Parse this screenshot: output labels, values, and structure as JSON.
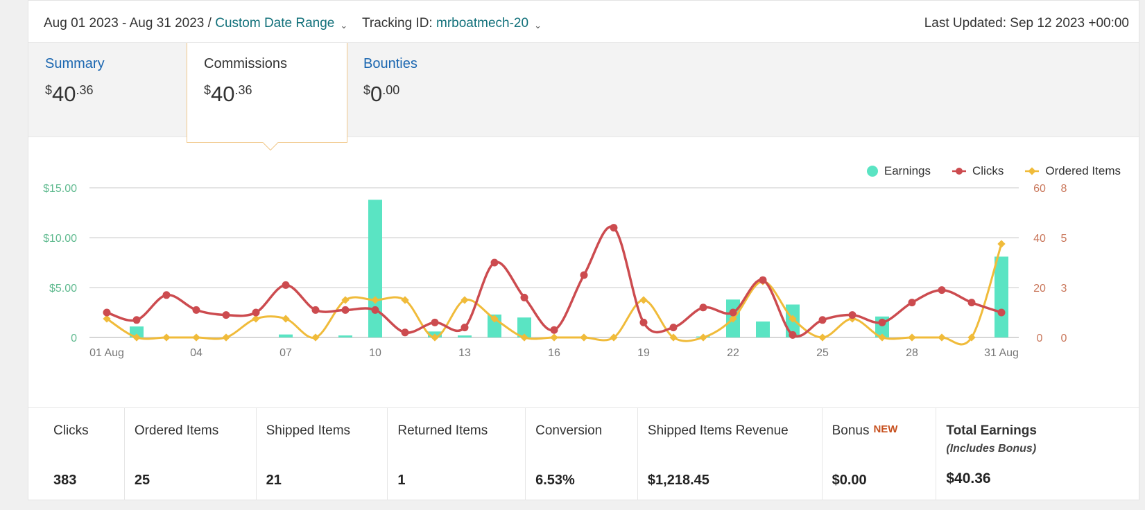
{
  "header": {
    "date_range": "Aug 01 2023 - Aug 31 2023 /",
    "date_range_link": "Custom Date Range",
    "tracking_label": "Tracking ID:",
    "tracking_id": "mrboatmech-20",
    "last_updated": "Last Updated: Sep 12 2023 +00:00"
  },
  "tabs": [
    {
      "label": "Summary",
      "dollar": "$",
      "whole": "40",
      "cents": ".36"
    },
    {
      "label": "Commissions",
      "dollar": "$",
      "whole": "40",
      "cents": ".36"
    },
    {
      "label": "Bounties",
      "dollar": "$",
      "whole": "0",
      "cents": ".00"
    }
  ],
  "legend": {
    "earnings": "Earnings",
    "clicks": "Clicks",
    "ordered": "Ordered Items"
  },
  "colors": {
    "earnings": "#5ae4c3",
    "clicks": "#cc4b4f",
    "ordered": "#f0bb3a",
    "left_axis": "#5fba8f",
    "right_axis": "#c9765a",
    "link": "#11707a"
  },
  "chart_data": {
    "type": "bar",
    "x": [
      "01 Aug",
      "02",
      "03",
      "04",
      "05",
      "06",
      "07",
      "08",
      "09",
      "10",
      "11",
      "12",
      "13",
      "14",
      "15",
      "16",
      "17",
      "18",
      "19",
      "20",
      "21",
      "22",
      "23",
      "24",
      "25",
      "26",
      "27",
      "28",
      "29",
      "30",
      "31 Aug"
    ],
    "x_tick_labels": [
      "01 Aug",
      "04",
      "07",
      "10",
      "13",
      "16",
      "19",
      "22",
      "25",
      "28",
      "31 Aug"
    ],
    "y_left_ticks": [
      "0",
      "$5.00",
      "$10.00",
      "$15.00"
    ],
    "y_left_lim": [
      0,
      15
    ],
    "y_right_ticks_clicks": [
      "0",
      "20",
      "40",
      "60"
    ],
    "y_right_lim_clicks": [
      0,
      60
    ],
    "y_right_ticks_items": [
      "0",
      "3",
      "5",
      "8"
    ],
    "y_right_lim_items": [
      0,
      8
    ],
    "grid": true,
    "legend_position": "top-right",
    "series": [
      {
        "name": "Earnings",
        "type": "bar",
        "axis": "left",
        "values": [
          0,
          1.1,
          0,
          0,
          0,
          0,
          0.3,
          0,
          0.2,
          13.8,
          0,
          0.6,
          0.2,
          2.3,
          2.0,
          0,
          0,
          0,
          0,
          0,
          0.1,
          3.8,
          1.6,
          3.3,
          0,
          0,
          2.1,
          0,
          0,
          0,
          8.1
        ]
      },
      {
        "name": "Clicks",
        "type": "line",
        "axis": "right-clicks",
        "values": [
          10,
          7,
          17,
          11,
          9,
          10,
          21,
          11,
          11,
          11,
          2,
          6,
          4,
          30,
          16,
          3,
          25,
          44,
          6,
          4,
          12,
          10,
          23,
          1,
          7,
          9,
          6,
          14,
          19,
          14,
          10
        ]
      },
      {
        "name": "Ordered Items",
        "type": "line",
        "axis": "right-items",
        "values": [
          1,
          0,
          0,
          0,
          0,
          1,
          1,
          0,
          2,
          2,
          2,
          0,
          2,
          1,
          0,
          0,
          0,
          0,
          2,
          0,
          0,
          1,
          3,
          1,
          0,
          1,
          0,
          0,
          0,
          0,
          5
        ]
      }
    ]
  },
  "stats": [
    {
      "label": "Clicks",
      "value": "383"
    },
    {
      "label": "Ordered Items",
      "value": "25"
    },
    {
      "label": "Shipped Items",
      "value": "21"
    },
    {
      "label": "Returned Items",
      "value": "1"
    },
    {
      "label": "Conversion",
      "value": "6.53%"
    },
    {
      "label": "Shipped Items Revenue",
      "value": "$1,218.45"
    },
    {
      "label": "Bonus",
      "badge": "NEW",
      "value": "$0.00"
    },
    {
      "label": "Total Earnings",
      "sub": "(Includes Bonus)",
      "value": "$40.36"
    }
  ]
}
